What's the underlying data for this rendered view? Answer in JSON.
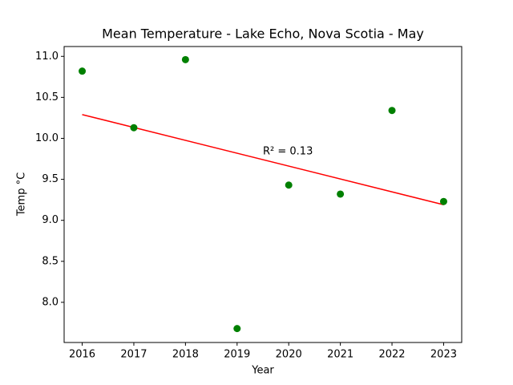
{
  "chart_data": {
    "type": "scatter",
    "title": "Mean Temperature - Lake Echo, Nova Scotia - May",
    "x_label": "Year",
    "y_label": "Temp °C",
    "x": [
      2016,
      2017,
      2018,
      2019,
      2020,
      2021,
      2022,
      2023
    ],
    "values": [
      10.82,
      10.13,
      10.96,
      7.68,
      9.43,
      9.32,
      10.34,
      9.23
    ],
    "color": "green",
    "trendline": {
      "x": [
        2016,
        2023
      ],
      "values": [
        10.29,
        9.19
      ],
      "color": "red"
    },
    "annotation": "R² = 0.13",
    "xlim": [
      2015.65,
      2023.35
    ],
    "ylim": [
      7.51,
      11.12
    ],
    "xticks": [
      2016,
      2017,
      2018,
      2019,
      2020,
      2021,
      2022,
      2023
    ],
    "yticks": [
      {
        "value": 8,
        "label": "8.0"
      },
      {
        "value": 8.5,
        "label": "8.5"
      },
      {
        "value": 9,
        "label": "9.0"
      },
      {
        "value": 9.5,
        "label": "9.5"
      },
      {
        "value": 10,
        "label": "10.0"
      },
      {
        "value": 10.5,
        "label": "10.5"
      },
      {
        "value": 11,
        "label": "11.0"
      }
    ],
    "grid": false
  }
}
